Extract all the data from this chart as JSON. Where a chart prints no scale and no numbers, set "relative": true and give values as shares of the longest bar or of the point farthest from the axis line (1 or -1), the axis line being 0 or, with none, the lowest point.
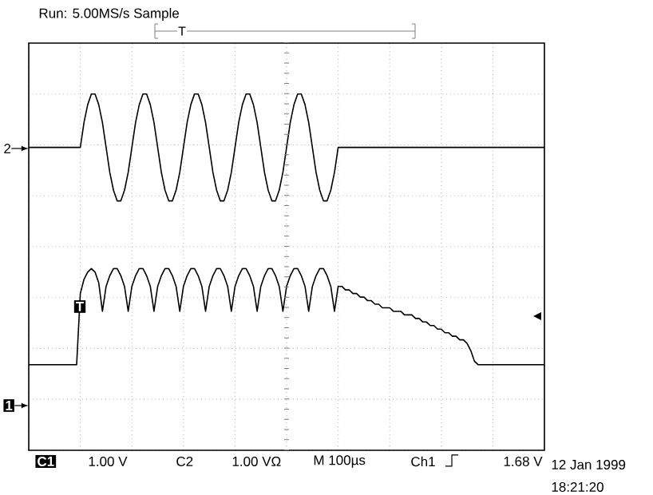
{
  "chart_data": {
    "type": "line",
    "title": "Run: 5.00MS/s    Sample",
    "relative": true,
    "grid": true,
    "tick_labels": false,
    "categories": [
      null,
      null,
      null,
      null,
      null,
      null,
      null,
      null,
      null,
      null,
      null,
      null,
      null,
      null,
      null,
      null,
      null,
      null,
      null,
      null,
      null,
      null,
      null,
      null,
      null,
      null,
      null,
      null,
      null,
      null,
      null,
      null,
      null,
      null,
      null,
      null,
      null,
      null,
      null,
      null,
      null,
      null,
      null,
      null,
      null,
      null,
      null,
      null,
      null,
      null,
      null,
      null,
      null,
      null,
      null,
      null,
      null,
      null,
      null,
      null,
      null,
      null,
      null,
      null,
      null,
      null,
      null,
      null,
      null,
      null,
      null,
      null,
      null,
      null,
      null,
      null,
      null,
      null,
      null,
      null,
      null,
      null,
      null,
      null,
      null,
      null,
      null,
      null,
      null,
      null,
      null,
      null,
      null,
      null,
      null,
      null,
      null,
      null,
      null,
      null,
      null,
      null,
      null,
      null,
      null,
      null,
      null,
      null,
      null,
      null,
      null,
      null,
      null,
      null,
      null,
      null,
      null,
      null,
      null,
      null,
      null,
      null,
      null,
      null,
      null,
      null,
      null,
      null,
      null,
      null,
      null,
      null,
      null,
      null,
      null,
      null,
      null,
      null,
      null,
      null,
      null
    ],
    "series": [
      {
        "color": "#000000",
        "values": [
          0.85,
          0.85,
          0.85,
          0.85,
          0.85,
          0.85,
          0.85,
          0.85,
          0.85,
          0.85,
          0.85,
          0.85,
          0.85,
          0.85,
          0.85,
          0.92,
          0.97,
          1.0,
          1.0,
          0.97,
          0.92,
          0.85,
          0.78,
          0.73,
          0.7,
          0.7,
          0.73,
          0.78,
          0.85,
          0.92,
          0.97,
          1.0,
          1.0,
          0.97,
          0.92,
          0.85,
          0.78,
          0.73,
          0.7,
          0.7,
          0.73,
          0.78,
          0.85,
          0.92,
          0.97,
          1.0,
          1.0,
          0.97,
          0.92,
          0.85,
          0.78,
          0.73,
          0.7,
          0.7,
          0.73,
          0.78,
          0.85,
          0.92,
          0.97,
          1.0,
          1.0,
          0.97,
          0.92,
          0.85,
          0.78,
          0.73,
          0.7,
          0.7,
          0.73,
          0.78,
          0.85,
          0.92,
          0.97,
          1.0,
          1.0,
          0.97,
          0.92,
          0.85,
          0.78,
          0.73,
          0.7,
          0.7,
          0.73,
          0.78,
          0.85,
          0.85,
          0.85,
          0.85,
          0.85,
          0.85,
          0.85,
          0.85,
          0.85,
          0.85,
          0.85,
          0.85,
          0.85,
          0.85,
          0.85,
          0.85,
          0.85,
          0.85,
          0.85,
          0.85,
          0.85,
          0.85,
          0.85,
          0.85,
          0.85,
          0.85,
          0.85,
          0.85,
          0.85,
          0.85,
          0.85,
          0.85,
          0.85,
          0.85,
          0.85,
          0.85,
          0.85,
          0.85,
          0.85,
          0.85,
          0.85,
          0.85,
          0.85,
          0.85,
          0.85,
          0.85,
          0.85,
          0.85,
          0.85,
          0.85,
          0.85,
          0.85,
          0.85,
          0.85,
          0.85,
          0.85,
          0.85
        ]
      },
      {
        "color": "#000000",
        "values": [
          0.24,
          0.24,
          0.24,
          0.24,
          0.24,
          0.24,
          0.24,
          0.24,
          0.24,
          0.24,
          0.24,
          0.24,
          0.24,
          0.24,
          0.44,
          0.48,
          0.5,
          0.51,
          0.5,
          0.47,
          0.39,
          0.46,
          0.49,
          0.51,
          0.51,
          0.49,
          0.46,
          0.39,
          0.46,
          0.49,
          0.51,
          0.51,
          0.49,
          0.46,
          0.39,
          0.46,
          0.49,
          0.51,
          0.51,
          0.49,
          0.46,
          0.39,
          0.46,
          0.49,
          0.51,
          0.51,
          0.49,
          0.46,
          0.39,
          0.46,
          0.49,
          0.51,
          0.51,
          0.49,
          0.46,
          0.39,
          0.46,
          0.49,
          0.51,
          0.51,
          0.49,
          0.46,
          0.39,
          0.46,
          0.49,
          0.51,
          0.51,
          0.49,
          0.46,
          0.39,
          0.46,
          0.49,
          0.51,
          0.51,
          0.49,
          0.46,
          0.39,
          0.46,
          0.49,
          0.51,
          0.51,
          0.49,
          0.46,
          0.39,
          0.46,
          0.46,
          0.45,
          0.45,
          0.44,
          0.44,
          0.43,
          0.43,
          0.42,
          0.42,
          0.41,
          0.41,
          0.4,
          0.4,
          0.4,
          0.39,
          0.39,
          0.39,
          0.38,
          0.38,
          0.38,
          0.37,
          0.37,
          0.36,
          0.36,
          0.35,
          0.35,
          0.34,
          0.34,
          0.33,
          0.33,
          0.32,
          0.32,
          0.31,
          0.31,
          0.3,
          0.28,
          0.25,
          0.24,
          0.24,
          0.24,
          0.24,
          0.24,
          0.24,
          0.24,
          0.24,
          0.24,
          0.24,
          0.24,
          0.24,
          0.24,
          0.24,
          0.24,
          0.24,
          0.24,
          0.24,
          0.24
        ]
      }
    ],
    "annotations": [
      "2",
      "1",
      "T",
      "T",
      "C1",
      "1.00 V",
      "C2",
      "1.00 VΩ",
      "M 100µs",
      "Ch1",
      "1.68 V",
      "12 Jan 1999",
      "18:21:20"
    ]
  }
}
